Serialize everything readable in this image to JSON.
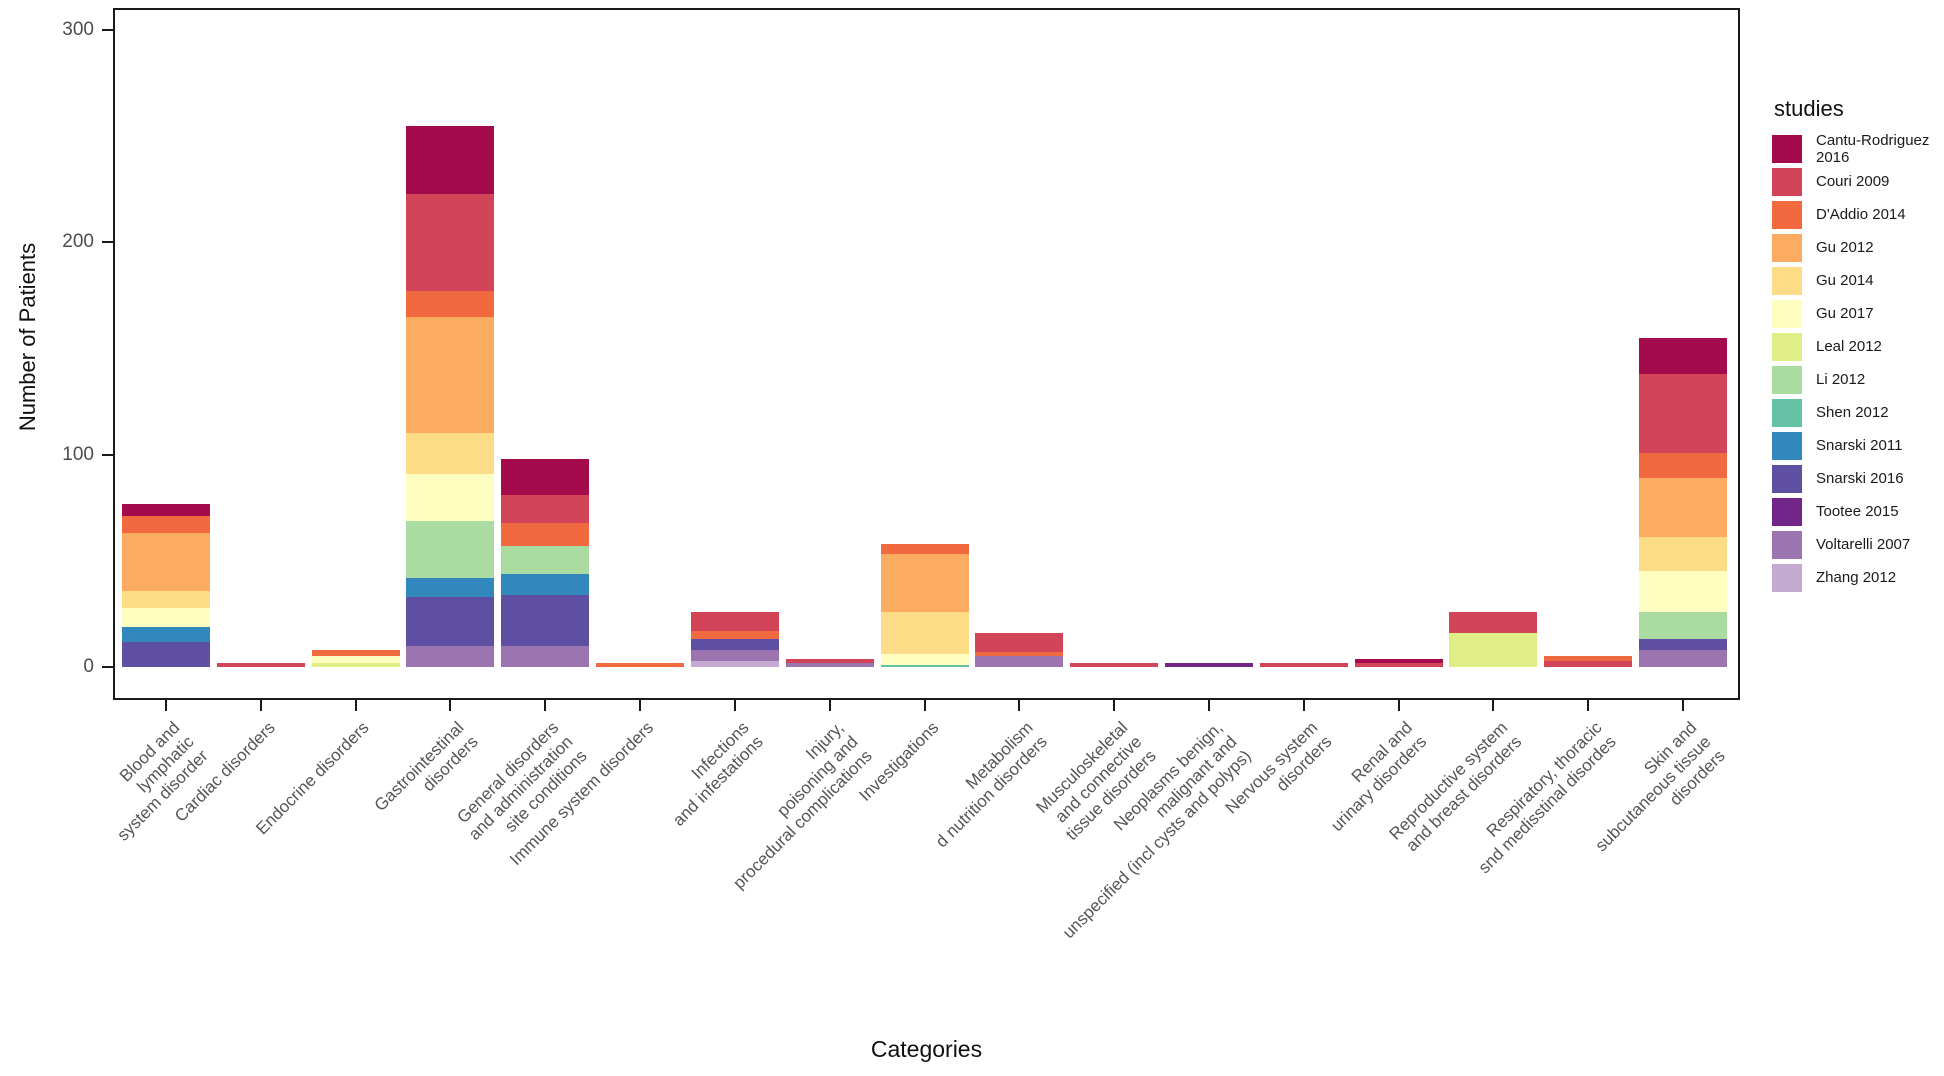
{
  "y_axis": {
    "label": "Number of Patients"
  },
  "x_axis": {
    "label": "Categories"
  },
  "legend": {
    "title": "studies",
    "studies": [
      {
        "name": "Cantu-Rodriguez 2016",
        "color": "#A30B4D"
      },
      {
        "name": "Couri 2009",
        "color": "#D24457"
      },
      {
        "name": "D'Addio 2014",
        "color": "#F0693F"
      },
      {
        "name": "Gu 2012",
        "color": "#FBAC61"
      },
      {
        "name": "Gu 2014",
        "color": "#FDDC87"
      },
      {
        "name": "Gu 2017",
        "color": "#FEFEC0"
      },
      {
        "name": "Leal 2012",
        "color": "#DFEE86"
      },
      {
        "name": "Li 2012",
        "color": "#AADCA2"
      },
      {
        "name": "Shen 2012",
        "color": "#66C2A5"
      },
      {
        "name": "Snarski 2011",
        "color": "#3288BD"
      },
      {
        "name": "Snarski 2016",
        "color": "#5E4FA2"
      },
      {
        "name": "Tootee 2015",
        "color": "#73268A"
      },
      {
        "name": "Voltarelli 2007",
        "color": "#9B74B0"
      },
      {
        "name": "Zhang 2012",
        "color": "#C4A9D1"
      }
    ]
  },
  "chart_data": {
    "type": "bar",
    "variant": "stacked",
    "title": "",
    "xlabel": "Categories",
    "ylabel": "Number of Patients",
    "ylim": [
      0,
      300
    ],
    "y_ticks": [
      0,
      100,
      200,
      300
    ],
    "grid": false,
    "legend_position": "right",
    "categories": [
      {
        "label": "Blood and\nlymphatic\nsystem disorder",
        "segments": [
          {
            "study": "Snarski 2016",
            "value": 12
          },
          {
            "study": "Snarski 2011",
            "value": 7
          },
          {
            "study": "Gu 2017",
            "value": 9
          },
          {
            "study": "Gu 2014",
            "value": 8
          },
          {
            "study": "Gu 2012",
            "value": 27
          },
          {
            "study": "D'Addio 2014",
            "value": 8
          },
          {
            "study": "Cantu-Rodriguez 2016",
            "value": 6
          }
        ]
      },
      {
        "label": "Cardiac disorders",
        "segments": [
          {
            "study": "Couri 2009",
            "value": 2
          }
        ]
      },
      {
        "label": "Endocrine disorders",
        "segments": [
          {
            "study": "Leal 2012",
            "value": 2
          },
          {
            "study": "Gu 2017",
            "value": 3
          },
          {
            "study": "D'Addio 2014",
            "value": 3
          }
        ]
      },
      {
        "label": "Gastrointestinal\ndisorders",
        "segments": [
          {
            "study": "Voltarelli 2007",
            "value": 10
          },
          {
            "study": "Snarski 2016",
            "value": 23
          },
          {
            "study": "Snarski 2011",
            "value": 9
          },
          {
            "study": "Li 2012",
            "value": 27
          },
          {
            "study": "Gu 2017",
            "value": 22
          },
          {
            "study": "Gu 2014",
            "value": 19
          },
          {
            "study": "Gu 2012",
            "value": 55
          },
          {
            "study": "D'Addio 2014",
            "value": 12
          },
          {
            "study": "Couri 2009",
            "value": 46
          },
          {
            "study": "Cantu-Rodriguez 2016",
            "value": 32
          }
        ]
      },
      {
        "label": "General disorders\nand administration\nsite conditions",
        "segments": [
          {
            "study": "Voltarelli 2007",
            "value": 10
          },
          {
            "study": "Snarski 2016",
            "value": 24
          },
          {
            "study": "Snarski 2011",
            "value": 10
          },
          {
            "study": "Li 2012",
            "value": 13
          },
          {
            "study": "D'Addio 2014",
            "value": 11
          },
          {
            "study": "Couri 2009",
            "value": 13
          },
          {
            "study": "Cantu-Rodriguez 2016",
            "value": 17
          }
        ]
      },
      {
        "label": "Immune system disorders",
        "segments": [
          {
            "study": "D'Addio 2014",
            "value": 2
          }
        ]
      },
      {
        "label": "Infections\nand infestations",
        "segments": [
          {
            "study": "Zhang 2012",
            "value": 3
          },
          {
            "study": "Voltarelli 2007",
            "value": 5
          },
          {
            "study": "Snarski 2016",
            "value": 5
          },
          {
            "study": "D'Addio 2014",
            "value": 4
          },
          {
            "study": "Couri 2009",
            "value": 9
          }
        ]
      },
      {
        "label": "Injury,\npoisoning and\nprocedural complications",
        "segments": [
          {
            "study": "Voltarelli 2007",
            "value": 2
          },
          {
            "study": "Couri 2009",
            "value": 2
          }
        ]
      },
      {
        "label": "Investigations",
        "segments": [
          {
            "study": "Shen 2012",
            "value": 1
          },
          {
            "study": "Gu 2017",
            "value": 5
          },
          {
            "study": "Gu 2014",
            "value": 20
          },
          {
            "study": "Gu 2012",
            "value": 27
          },
          {
            "study": "D'Addio 2014",
            "value": 5
          }
        ]
      },
      {
        "label": "Metabolism\nd nutrition disorders",
        "segments": [
          {
            "study": "Voltarelli 2007",
            "value": 5
          },
          {
            "study": "D'Addio 2014",
            "value": 2
          },
          {
            "study": "Couri 2009",
            "value": 9
          }
        ]
      },
      {
        "label": "Musculoskeletal\nand connective\ntissue disorders",
        "segments": [
          {
            "study": "Couri 2009",
            "value": 2
          }
        ]
      },
      {
        "label": "Neoplasms benign,\nmalignant and\nunspecified (incl cysts and polyps)",
        "segments": [
          {
            "study": "Tootee 2015",
            "value": 2
          }
        ]
      },
      {
        "label": "Nervous system\ndisorders",
        "segments": [
          {
            "study": "Couri 2009",
            "value": 2
          }
        ]
      },
      {
        "label": "Renal and\nurinary disorders",
        "segments": [
          {
            "study": "Couri 2009",
            "value": 2
          },
          {
            "study": "Cantu-Rodriguez 2016",
            "value": 2
          }
        ]
      },
      {
        "label": "Reproductive system\nand breast disorders",
        "segments": [
          {
            "study": "Leal 2012",
            "value": 16
          },
          {
            "study": "Couri 2009",
            "value": 10
          }
        ]
      },
      {
        "label": "Respiratory, thoracic\nsnd medisstinal disordes",
        "segments": [
          {
            "study": "Couri 2009",
            "value": 3
          },
          {
            "study": "D'Addio 2014",
            "value": 2
          }
        ]
      },
      {
        "label": "Skin and\nsubcutaneous tissue\ndisorders",
        "segments": [
          {
            "study": "Voltarelli 2007",
            "value": 8
          },
          {
            "study": "Snarski 2016",
            "value": 5
          },
          {
            "study": "Li 2012",
            "value": 13
          },
          {
            "study": "Gu 2017",
            "value": 19
          },
          {
            "study": "Gu 2014",
            "value": 16
          },
          {
            "study": "Gu 2012",
            "value": 28
          },
          {
            "study": "D'Addio 2014",
            "value": 12
          },
          {
            "study": "Couri 2009",
            "value": 37
          },
          {
            "study": "Cantu-Rodriguez 2016",
            "value": 17
          }
        ]
      }
    ]
  }
}
